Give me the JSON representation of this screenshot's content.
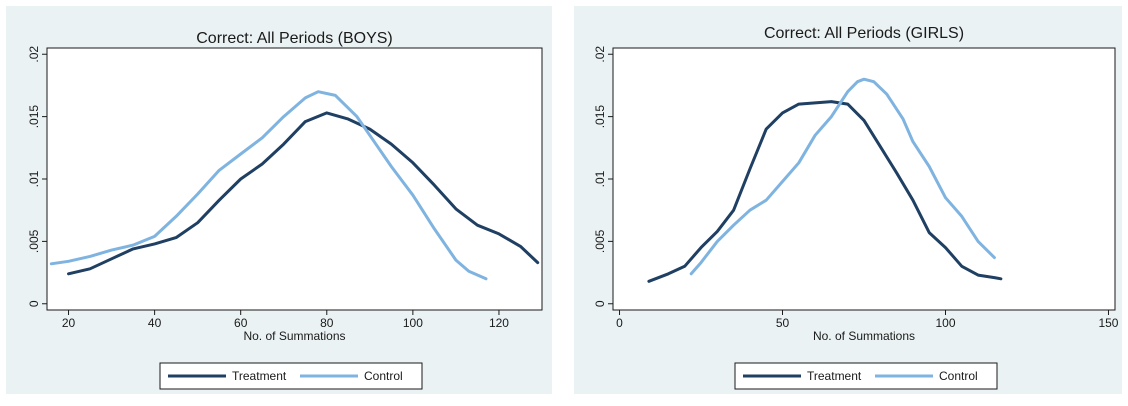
{
  "colors": {
    "treatment": "#1f3f63",
    "control": "#7fb3e0",
    "panel_bg": "#eaf2f3"
  },
  "chart_data": [
    {
      "type": "line",
      "title": "Correct: All Periods (BOYS)",
      "xlabel": "No. of Summations",
      "ylabel": "",
      "xlim": [
        15,
        130
      ],
      "ylim": [
        -0.0005,
        0.0205
      ],
      "xticks": [
        {
          "v": 20,
          "label": "20"
        },
        {
          "v": 40,
          "label": "40"
        },
        {
          "v": 60,
          "label": "60"
        },
        {
          "v": 80,
          "label": "80"
        },
        {
          "v": 100,
          "label": "100"
        },
        {
          "v": 120,
          "label": "120"
        }
      ],
      "yticks": [
        {
          "v": 0,
          "label": "0"
        },
        {
          "v": 0.005,
          "label": ".005"
        },
        {
          "v": 0.01,
          "label": ".01"
        },
        {
          "v": 0.015,
          "label": ".015"
        },
        {
          "v": 0.02,
          "label": ".02"
        }
      ],
      "legend": [
        "Treatment",
        "Control"
      ],
      "series": [
        {
          "name": "Treatment",
          "color": "#1f3f63",
          "x": [
            20,
            25,
            30,
            35,
            40,
            45,
            50,
            55,
            60,
            65,
            70,
            75,
            80,
            85,
            90,
            95,
            100,
            105,
            110,
            115,
            120,
            125,
            129
          ],
          "y": [
            0.0024,
            0.0028,
            0.0036,
            0.0044,
            0.0048,
            0.0053,
            0.0065,
            0.0083,
            0.01,
            0.0112,
            0.0128,
            0.0146,
            0.0153,
            0.0148,
            0.014,
            0.0128,
            0.0113,
            0.0095,
            0.0076,
            0.0063,
            0.0056,
            0.0046,
            0.0033
          ]
        },
        {
          "name": "Control",
          "color": "#7fb3e0",
          "x": [
            16,
            20,
            25,
            30,
            35,
            40,
            45,
            50,
            55,
            60,
            65,
            70,
            75,
            78,
            82,
            87,
            90,
            95,
            100,
            105,
            110,
            113,
            117
          ],
          "y": [
            0.0032,
            0.0034,
            0.0038,
            0.0043,
            0.0047,
            0.0054,
            0.007,
            0.0088,
            0.0107,
            0.012,
            0.0133,
            0.015,
            0.0165,
            0.017,
            0.0167,
            0.015,
            0.0135,
            0.011,
            0.0087,
            0.006,
            0.0035,
            0.0026,
            0.002
          ]
        }
      ]
    },
    {
      "type": "line",
      "title": "Correct: All Periods (GIRLS)",
      "xlabel": "No. of Summations",
      "ylabel": "",
      "xlim": [
        -2,
        152
      ],
      "ylim": [
        -0.0005,
        0.0205
      ],
      "xticks": [
        {
          "v": 0,
          "label": "0"
        },
        {
          "v": 50,
          "label": "50"
        },
        {
          "v": 100,
          "label": "100"
        },
        {
          "v": 150,
          "label": "150"
        }
      ],
      "yticks": [
        {
          "v": 0,
          "label": "0"
        },
        {
          "v": 0.005,
          "label": ".005"
        },
        {
          "v": 0.01,
          "label": ".01"
        },
        {
          "v": 0.015,
          "label": ".015"
        },
        {
          "v": 0.02,
          "label": ".02"
        }
      ],
      "legend": [
        "Treatment",
        "Control"
      ],
      "series": [
        {
          "name": "Treatment",
          "color": "#1f3f63",
          "x": [
            9,
            15,
            20,
            25,
            30,
            35,
            40,
            45,
            50,
            55,
            60,
            65,
            70,
            75,
            80,
            85,
            90,
            95,
            100,
            105,
            110,
            115,
            117
          ],
          "y": [
            0.0018,
            0.0024,
            0.003,
            0.0045,
            0.0058,
            0.0075,
            0.0108,
            0.014,
            0.0153,
            0.016,
            0.0161,
            0.0162,
            0.016,
            0.0147,
            0.0126,
            0.0105,
            0.0083,
            0.0057,
            0.0045,
            0.003,
            0.0023,
            0.0021,
            0.002
          ]
        },
        {
          "name": "Control",
          "color": "#7fb3e0",
          "x": [
            22,
            25,
            30,
            35,
            40,
            45,
            50,
            55,
            60,
            65,
            70,
            73,
            75,
            78,
            82,
            87,
            90,
            95,
            100,
            105,
            110,
            115
          ],
          "y": [
            0.0024,
            0.0033,
            0.005,
            0.0063,
            0.0075,
            0.0083,
            0.0098,
            0.0113,
            0.0135,
            0.015,
            0.017,
            0.0178,
            0.018,
            0.0178,
            0.0168,
            0.0148,
            0.013,
            0.011,
            0.0085,
            0.007,
            0.005,
            0.0037
          ]
        }
      ]
    }
  ]
}
